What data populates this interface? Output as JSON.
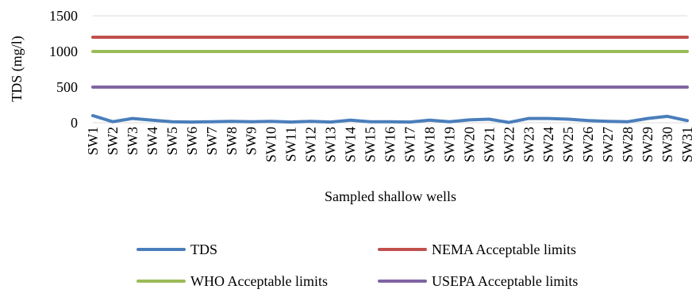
{
  "chart_data": {
    "type": "line",
    "title": "",
    "xlabel": "Sampled shallow wells",
    "ylabel": "TDS (mg/l)",
    "ylim": [
      0,
      1500
    ],
    "yticks": [
      0,
      500,
      1000,
      1500
    ],
    "grid": "horizontal",
    "legend_position": "bottom",
    "categories": [
      "SW1",
      "SW2",
      "SW3",
      "SW4",
      "SW5",
      "SW6",
      "SW7",
      "SW8",
      "SW9",
      "SW10",
      "SW11",
      "SW12",
      "SW13",
      "SW14",
      "SW15",
      "SW16",
      "SW17",
      "SW18",
      "SW19",
      "SW20",
      "SW21",
      "SW22",
      "SW23",
      "SW24",
      "SW25",
      "SW26",
      "SW27",
      "SW28",
      "SW29",
      "SW30",
      "SW31"
    ],
    "series": [
      {
        "name": "TDS",
        "color": "#4a7ebb",
        "values": [
          100,
          15,
          60,
          35,
          15,
          10,
          15,
          20,
          15,
          20,
          10,
          20,
          10,
          35,
          15,
          15,
          10,
          35,
          15,
          40,
          50,
          5,
          60,
          60,
          50,
          30,
          20,
          15,
          60,
          90,
          30
        ]
      },
      {
        "name": "NEMA Acceptable limits",
        "color": "#c0504d",
        "values": [
          1200,
          1200,
          1200,
          1200,
          1200,
          1200,
          1200,
          1200,
          1200,
          1200,
          1200,
          1200,
          1200,
          1200,
          1200,
          1200,
          1200,
          1200,
          1200,
          1200,
          1200,
          1200,
          1200,
          1200,
          1200,
          1200,
          1200,
          1200,
          1200,
          1200,
          1200
        ]
      },
      {
        "name": "WHO Acceptable limits",
        "color": "#9bbb59",
        "values": [
          1000,
          1000,
          1000,
          1000,
          1000,
          1000,
          1000,
          1000,
          1000,
          1000,
          1000,
          1000,
          1000,
          1000,
          1000,
          1000,
          1000,
          1000,
          1000,
          1000,
          1000,
          1000,
          1000,
          1000,
          1000,
          1000,
          1000,
          1000,
          1000,
          1000,
          1000
        ]
      },
      {
        "name": "USEPA Acceptable limits",
        "color": "#8064a2",
        "values": [
          500,
          500,
          500,
          500,
          500,
          500,
          500,
          500,
          500,
          500,
          500,
          500,
          500,
          500,
          500,
          500,
          500,
          500,
          500,
          500,
          500,
          500,
          500,
          500,
          500,
          500,
          500,
          500,
          500,
          500,
          500
        ]
      }
    ]
  }
}
